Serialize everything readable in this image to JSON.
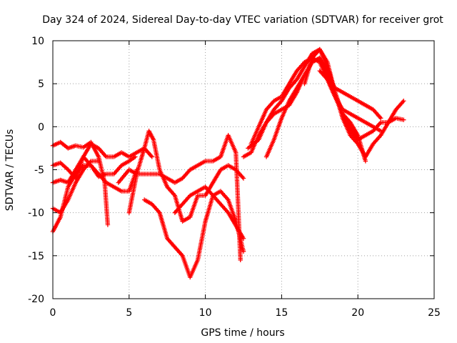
{
  "chart_data": {
    "type": "scatter",
    "title": "Day 324 of 2024, Sidereal Day-to-day VTEC variation (SDTVAR) for receiver grot",
    "xlabel": "GPS time / hours",
    "ylabel": "SDTVAR / TECUs",
    "xlim": [
      0,
      25
    ],
    "ylim": [
      -20,
      10
    ],
    "xticks": [
      0,
      5,
      10,
      15,
      20,
      25
    ],
    "yticks": [
      -20,
      -15,
      -10,
      -5,
      0,
      5,
      10
    ],
    "grid": true,
    "marker": "+",
    "colors": {
      "series": "#ff0000",
      "axis": "#000000",
      "grid": "#a0a0a0"
    },
    "series": [
      {
        "x": [
          0,
          0.5,
          1,
          1.5,
          2,
          2.5,
          3,
          3.4,
          3.6
        ],
        "y": [
          -2.2,
          -1.8,
          -2.5,
          -2.2,
          -2.4,
          -1.8,
          -3.5,
          -6.5,
          -11.4
        ]
      },
      {
        "x": [
          0,
          0.5,
          1,
          1.5,
          2,
          2.5,
          3,
          3.5,
          4,
          4.5,
          5,
          5.5,
          6,
          6.5
        ],
        "y": [
          -4.5,
          -4.2,
          -5.0,
          -6.0,
          -3.5,
          -2.0,
          -2.5,
          -3.5,
          -3.5,
          -3.0,
          -3.5,
          -3.0,
          -2.5,
          -3.5
        ]
      },
      {
        "x": [
          0,
          0.5,
          1,
          1.5,
          2,
          2.5,
          3,
          3.5,
          4,
          4.5,
          5,
          5.5
        ],
        "y": [
          -6.5,
          -6.2,
          -6.5,
          -5.0,
          -3.5,
          -4.5,
          -5.5,
          -6.5,
          -7.0,
          -7.5,
          -7.5,
          -5.0
        ]
      },
      {
        "x": [
          0,
          0.5,
          1,
          1.5,
          2,
          2.5,
          3,
          3.5,
          4,
          4.5,
          5,
          5.4
        ],
        "y": [
          -12.2,
          -10.5,
          -7.0,
          -5.5,
          -4.5,
          -4.5,
          -5.8,
          -5.5,
          -5.5,
          -4.5,
          -4.0,
          -3.5
        ]
      },
      {
        "x": [
          0,
          0.5,
          1,
          1.5,
          2,
          2.5,
          3
        ],
        "y": [
          -9.5,
          -10.0,
          -8.5,
          -6.5,
          -5.0,
          -4.0,
          -4.0
        ]
      },
      {
        "x": [
          5,
          5.5,
          6,
          6.3,
          6.6,
          7,
          7.5,
          8,
          8.5,
          9,
          9.5,
          10,
          10.5,
          11,
          11.5,
          12,
          12.5
        ],
        "y": [
          -10.0,
          -5.5,
          -2.5,
          -0.5,
          -1.5,
          -5.0,
          -7.0,
          -8.0,
          -11.0,
          -10.5,
          -8.0,
          -8.0,
          -6.5,
          -5.0,
          -4.5,
          -5.0,
          -6.0
        ]
      },
      {
        "x": [
          4.3,
          5,
          5.5,
          6,
          6.5,
          7,
          7.5,
          8,
          8.5,
          9,
          9.5,
          10,
          10.5,
          11,
          11.5,
          12,
          12.3
        ],
        "y": [
          -6.5,
          -5.0,
          -5.5,
          -5.5,
          -5.5,
          -5.5,
          -6.0,
          -6.5,
          -6.0,
          -5.0,
          -4.5,
          -4.0,
          -4.0,
          -3.5,
          -1.0,
          -3.0,
          -15.5
        ]
      },
      {
        "x": [
          6,
          6.5,
          7,
          7.5,
          8,
          8.5,
          9,
          9.5,
          10,
          10.5,
          11,
          11.5,
          12,
          12.5
        ],
        "y": [
          -8.5,
          -9.0,
          -10.0,
          -13.0,
          -14.0,
          -15.0,
          -17.5,
          -15.5,
          -11.0,
          -8.0,
          -7.5,
          -8.5,
          -11.0,
          -14.5
        ]
      },
      {
        "x": [
          8,
          8.5,
          9,
          9.5,
          10,
          10.5,
          11,
          11.5,
          12,
          12.5
        ],
        "y": [
          -10.0,
          -9.0,
          -8.0,
          -7.5,
          -7.0,
          -8.0,
          -9.0,
          -10.0,
          -11.5,
          -13.0
        ]
      },
      {
        "x": [
          12.5,
          13,
          13.5,
          14,
          14.5,
          15,
          15.5,
          16,
          16.5,
          17,
          17.5,
          18,
          18.5,
          19,
          19.5,
          20
        ],
        "y": [
          -3.5,
          -3.0,
          -1.0,
          0.5,
          1.5,
          2.0,
          2.5,
          4.0,
          6.0,
          7.5,
          8.0,
          6.5,
          4.0,
          1.5,
          -0.5,
          -1.5
        ]
      },
      {
        "x": [
          12.8,
          13.5,
          14,
          14.5,
          15,
          15.5,
          16,
          16.5,
          17,
          17.5,
          18,
          18.5,
          19,
          19.5,
          20,
          20.5,
          21,
          21.5,
          22,
          22.5,
          23
        ],
        "y": [
          -2.5,
          -1.5,
          0.5,
          2.0,
          3.0,
          4.5,
          5.5,
          7.0,
          8.5,
          9.0,
          7.5,
          4.0,
          1.5,
          0.0,
          -1.5,
          -1.0,
          -0.5,
          0.5,
          0.5,
          1.0,
          0.8
        ]
      },
      {
        "x": [
          13,
          13.5,
          14,
          14.5,
          15,
          15.5,
          16,
          16.5,
          17,
          17.5,
          18,
          18.5,
          19,
          19.5,
          20,
          20.5,
          21,
          21.5
        ],
        "y": [
          -2.0,
          0.0,
          2.0,
          3.0,
          3.5,
          5.0,
          6.5,
          7.5,
          8.0,
          7.5,
          5.5,
          3.5,
          2.0,
          1.5,
          1.0,
          0.5,
          0.0,
          -0.5
        ]
      },
      {
        "x": [
          14,
          14.5,
          15,
          15.5,
          16,
          16.5,
          17,
          17.5,
          18,
          18.5,
          19,
          19.5,
          20,
          20.5,
          21,
          21.5
        ],
        "y": [
          -3.5,
          -1.5,
          1.0,
          3.0,
          4.5,
          6.0,
          7.5,
          8.0,
          6.0,
          4.5,
          4.0,
          3.5,
          3.0,
          2.5,
          2.0,
          1.0
        ]
      },
      {
        "x": [
          16.5,
          17,
          17.5,
          18,
          18.5,
          19,
          19.5,
          20,
          20.5,
          21,
          21.5,
          22,
          22.5,
          23
        ],
        "y": [
          5.0,
          8.0,
          9.0,
          7.0,
          4.0,
          1.0,
          -1.0,
          -2.0,
          -3.5,
          -2.0,
          -1.0,
          0.5,
          2.0,
          3.0
        ]
      },
      {
        "x": [
          17.5,
          18,
          18.5,
          19,
          19.5,
          20,
          20.5
        ],
        "y": [
          6.5,
          5.5,
          3.5,
          1.5,
          0.5,
          -1.0,
          -4.0
        ]
      }
    ]
  }
}
